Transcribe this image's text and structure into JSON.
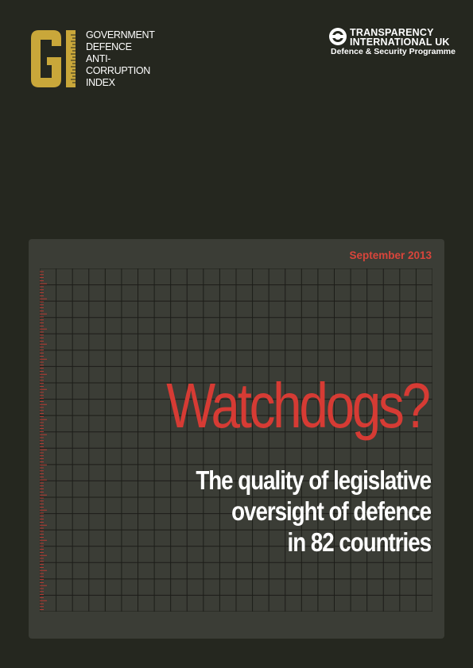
{
  "gi_logo": {
    "letters": "GI",
    "lines": [
      "GOVERNMENT",
      "DEFENCE",
      "ANTI-",
      "CORRUPTION",
      "INDEX"
    ]
  },
  "ti_logo": {
    "line1": "TRANSPARENCY",
    "line2": "INTERNATIONAL UK",
    "programme": "Defence & Security Programme"
  },
  "date": "September 2013",
  "title": "Watchdogs?",
  "subtitle": [
    "The quality of legislative",
    "oversight of defence",
    "in 82 countries"
  ],
  "colors": {
    "background": "#25271f",
    "panel": "#3b3d36",
    "accent_red": "#d63b34",
    "logo_gold": "#c9a73a"
  }
}
